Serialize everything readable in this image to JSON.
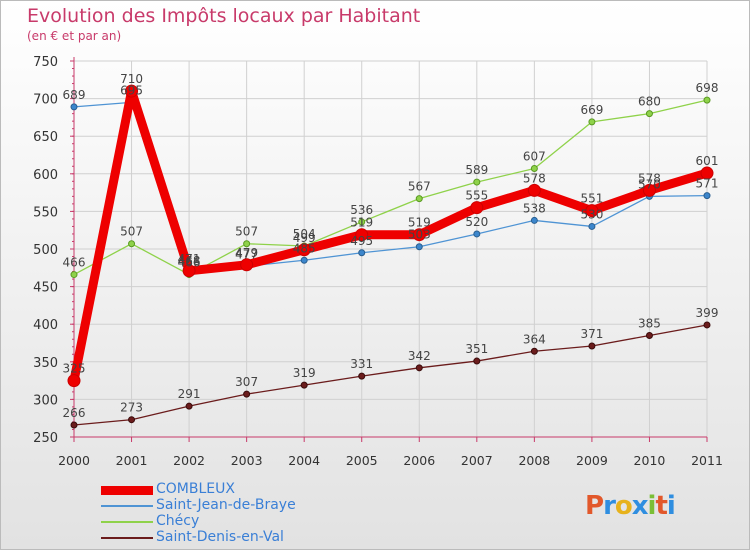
{
  "header": {
    "title": "Evolution des Impôts locaux par Habitant",
    "subtitle": "(en € et par an)"
  },
  "logo": {
    "text": "Proxiti",
    "colors": [
      "#e2582b",
      "#2f8ee0",
      "#e7b21c",
      "#2f8ee0",
      "#7bbf36",
      "#e2582b",
      "#2f8ee0"
    ]
  },
  "chart_data": {
    "type": "line",
    "title": "Evolution des Impôts locaux par Habitant",
    "subtitle": "(en € et par an)",
    "xlabel": "",
    "ylabel": "",
    "x": [
      "2000",
      "2001",
      "2002",
      "2003",
      "2004",
      "2005",
      "2006",
      "2007",
      "2008",
      "2009",
      "2010",
      "2011"
    ],
    "ylim": [
      250,
      750
    ],
    "yticks": [
      250,
      300,
      350,
      400,
      450,
      500,
      550,
      600,
      650,
      700,
      750
    ],
    "grid": true,
    "legend_position": "bottom-left",
    "series": [
      {
        "name": "COMBLEUX",
        "color": "#ee0000",
        "values": [
          325,
          710,
          471,
          479,
          499,
          519,
          519,
          555,
          578,
          551,
          578,
          601
        ]
      },
      {
        "name": "Saint-Jean-de-Braye",
        "color": "#4f94d4",
        "values": [
          689,
          695,
          468,
          477,
          485,
          495,
          503,
          520,
          538,
          530,
          570,
          571
        ]
      },
      {
        "name": "Chécy",
        "color": "#8fd24a",
        "values": [
          466,
          507,
          466,
          507,
          504,
          536,
          567,
          589,
          607,
          669,
          680,
          698
        ]
      },
      {
        "name": "Saint-Denis-en-Val",
        "color": "#6b1c1c",
        "values": [
          266,
          273,
          291,
          307,
          319,
          331,
          342,
          351,
          364,
          371,
          385,
          399
        ]
      }
    ]
  }
}
